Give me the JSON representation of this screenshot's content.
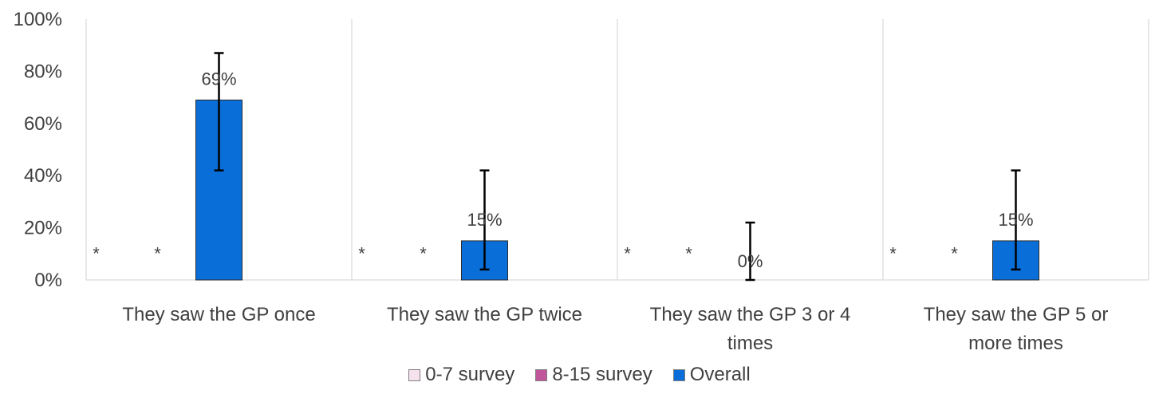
{
  "chart_data": {
    "type": "bar",
    "categories": [
      "They saw the GP once",
      "They saw the GP twice",
      "They saw the GP 3 or 4 times",
      "They saw the GP 5 or more times"
    ],
    "category_lines": [
      [
        "They saw the GP once"
      ],
      [
        "They saw the GP twice"
      ],
      [
        "They saw the GP 3 or 4",
        "times"
      ],
      [
        "They saw the GP 5 or",
        "more times"
      ]
    ],
    "series": [
      {
        "name": "0-7 survey",
        "color": "#f6e2ec",
        "values": [
          null,
          null,
          null,
          null
        ],
        "labels": [
          "*",
          "*",
          "*",
          "*"
        ]
      },
      {
        "name": "8-15 survey",
        "color": "#c2569b",
        "values": [
          null,
          null,
          null,
          null
        ],
        "labels": [
          "*",
          "*",
          "*",
          "*"
        ]
      },
      {
        "name": "Overall",
        "color": "#0a6ed8",
        "values": [
          69,
          15,
          0,
          15
        ],
        "labels": [
          "69%",
          "15%",
          "0%",
          "15%"
        ],
        "error_low": [
          42,
          4,
          0,
          4
        ],
        "error_high": [
          87,
          42,
          22,
          42
        ]
      }
    ],
    "yticks": [
      "0%",
      "20%",
      "40%",
      "60%",
      "80%",
      "100%"
    ],
    "ylim": [
      0,
      100
    ],
    "legend_position": "bottom",
    "grid": "vertical category separators"
  }
}
